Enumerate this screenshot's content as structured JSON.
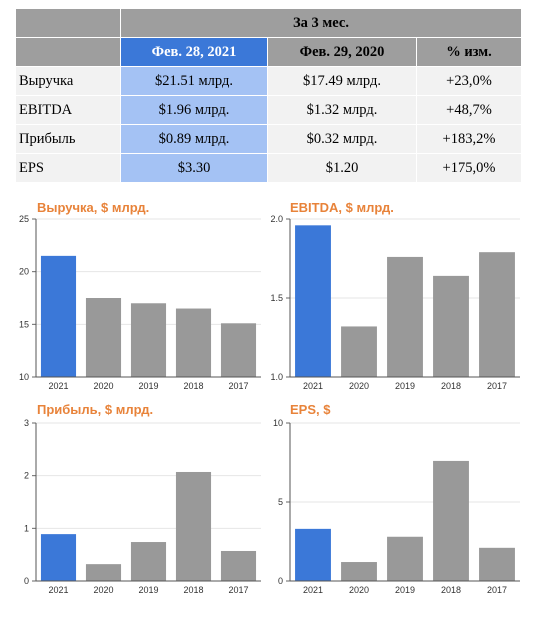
{
  "table": {
    "group_header": "За 3 мес.",
    "columns": [
      "Фев. 28, 2021",
      "Фев. 29, 2020",
      "% изм."
    ],
    "rows": [
      {
        "label": "Выручка",
        "c1": "$21.51 млрд.",
        "c2": "$17.49 млрд.",
        "c3": "+23,0%"
      },
      {
        "label": "EBITDA",
        "c1": "$1.96 млрд.",
        "c2": "$1.32 млрд.",
        "c3": "+48,7%"
      },
      {
        "label": "Прибыль",
        "c1": "$0.89 млрд.",
        "c2": "$0.32 млрд.",
        "c3": "+183,2%"
      },
      {
        "label": "EPS",
        "c1": "$3.30",
        "c2": "$1.20",
        "c3": "+175,0%"
      }
    ]
  },
  "colors": {
    "highlight": "#3b78d8",
    "bar": "#999999",
    "title": "#e8833a"
  },
  "chart_data": [
    {
      "type": "bar",
      "title": "Выручка, $ млрд.",
      "categories": [
        "2021",
        "2020",
        "2019",
        "2018",
        "2017"
      ],
      "values": [
        21.5,
        17.5,
        17.0,
        16.5,
        15.1
      ],
      "ylim": [
        10,
        25
      ],
      "yticks": [
        10,
        15,
        20,
        25
      ],
      "highlight_index": 0
    },
    {
      "type": "bar",
      "title": "EBITDA, $ млрд.",
      "categories": [
        "2021",
        "2020",
        "2019",
        "2018",
        "2017"
      ],
      "values": [
        1.96,
        1.32,
        1.76,
        1.64,
        1.79
      ],
      "ylim": [
        1.0,
        2.0
      ],
      "yticks": [
        "1.0",
        "1.5",
        "2.0"
      ],
      "highlight_index": 0
    },
    {
      "type": "bar",
      "title": "Прибыль, $ млрд.",
      "categories": [
        "2021",
        "2020",
        "2019",
        "2018",
        "2017"
      ],
      "values": [
        0.89,
        0.32,
        0.74,
        2.07,
        0.57
      ],
      "ylim": [
        0,
        3
      ],
      "yticks": [
        0,
        1,
        2,
        3
      ],
      "highlight_index": 0
    },
    {
      "type": "bar",
      "title": "EPS, $",
      "categories": [
        "2021",
        "2020",
        "2019",
        "2018",
        "2017"
      ],
      "values": [
        3.3,
        1.2,
        2.8,
        7.6,
        2.1
      ],
      "ylim": [
        0,
        10
      ],
      "yticks": [
        0,
        5,
        10
      ],
      "highlight_index": 0
    }
  ]
}
